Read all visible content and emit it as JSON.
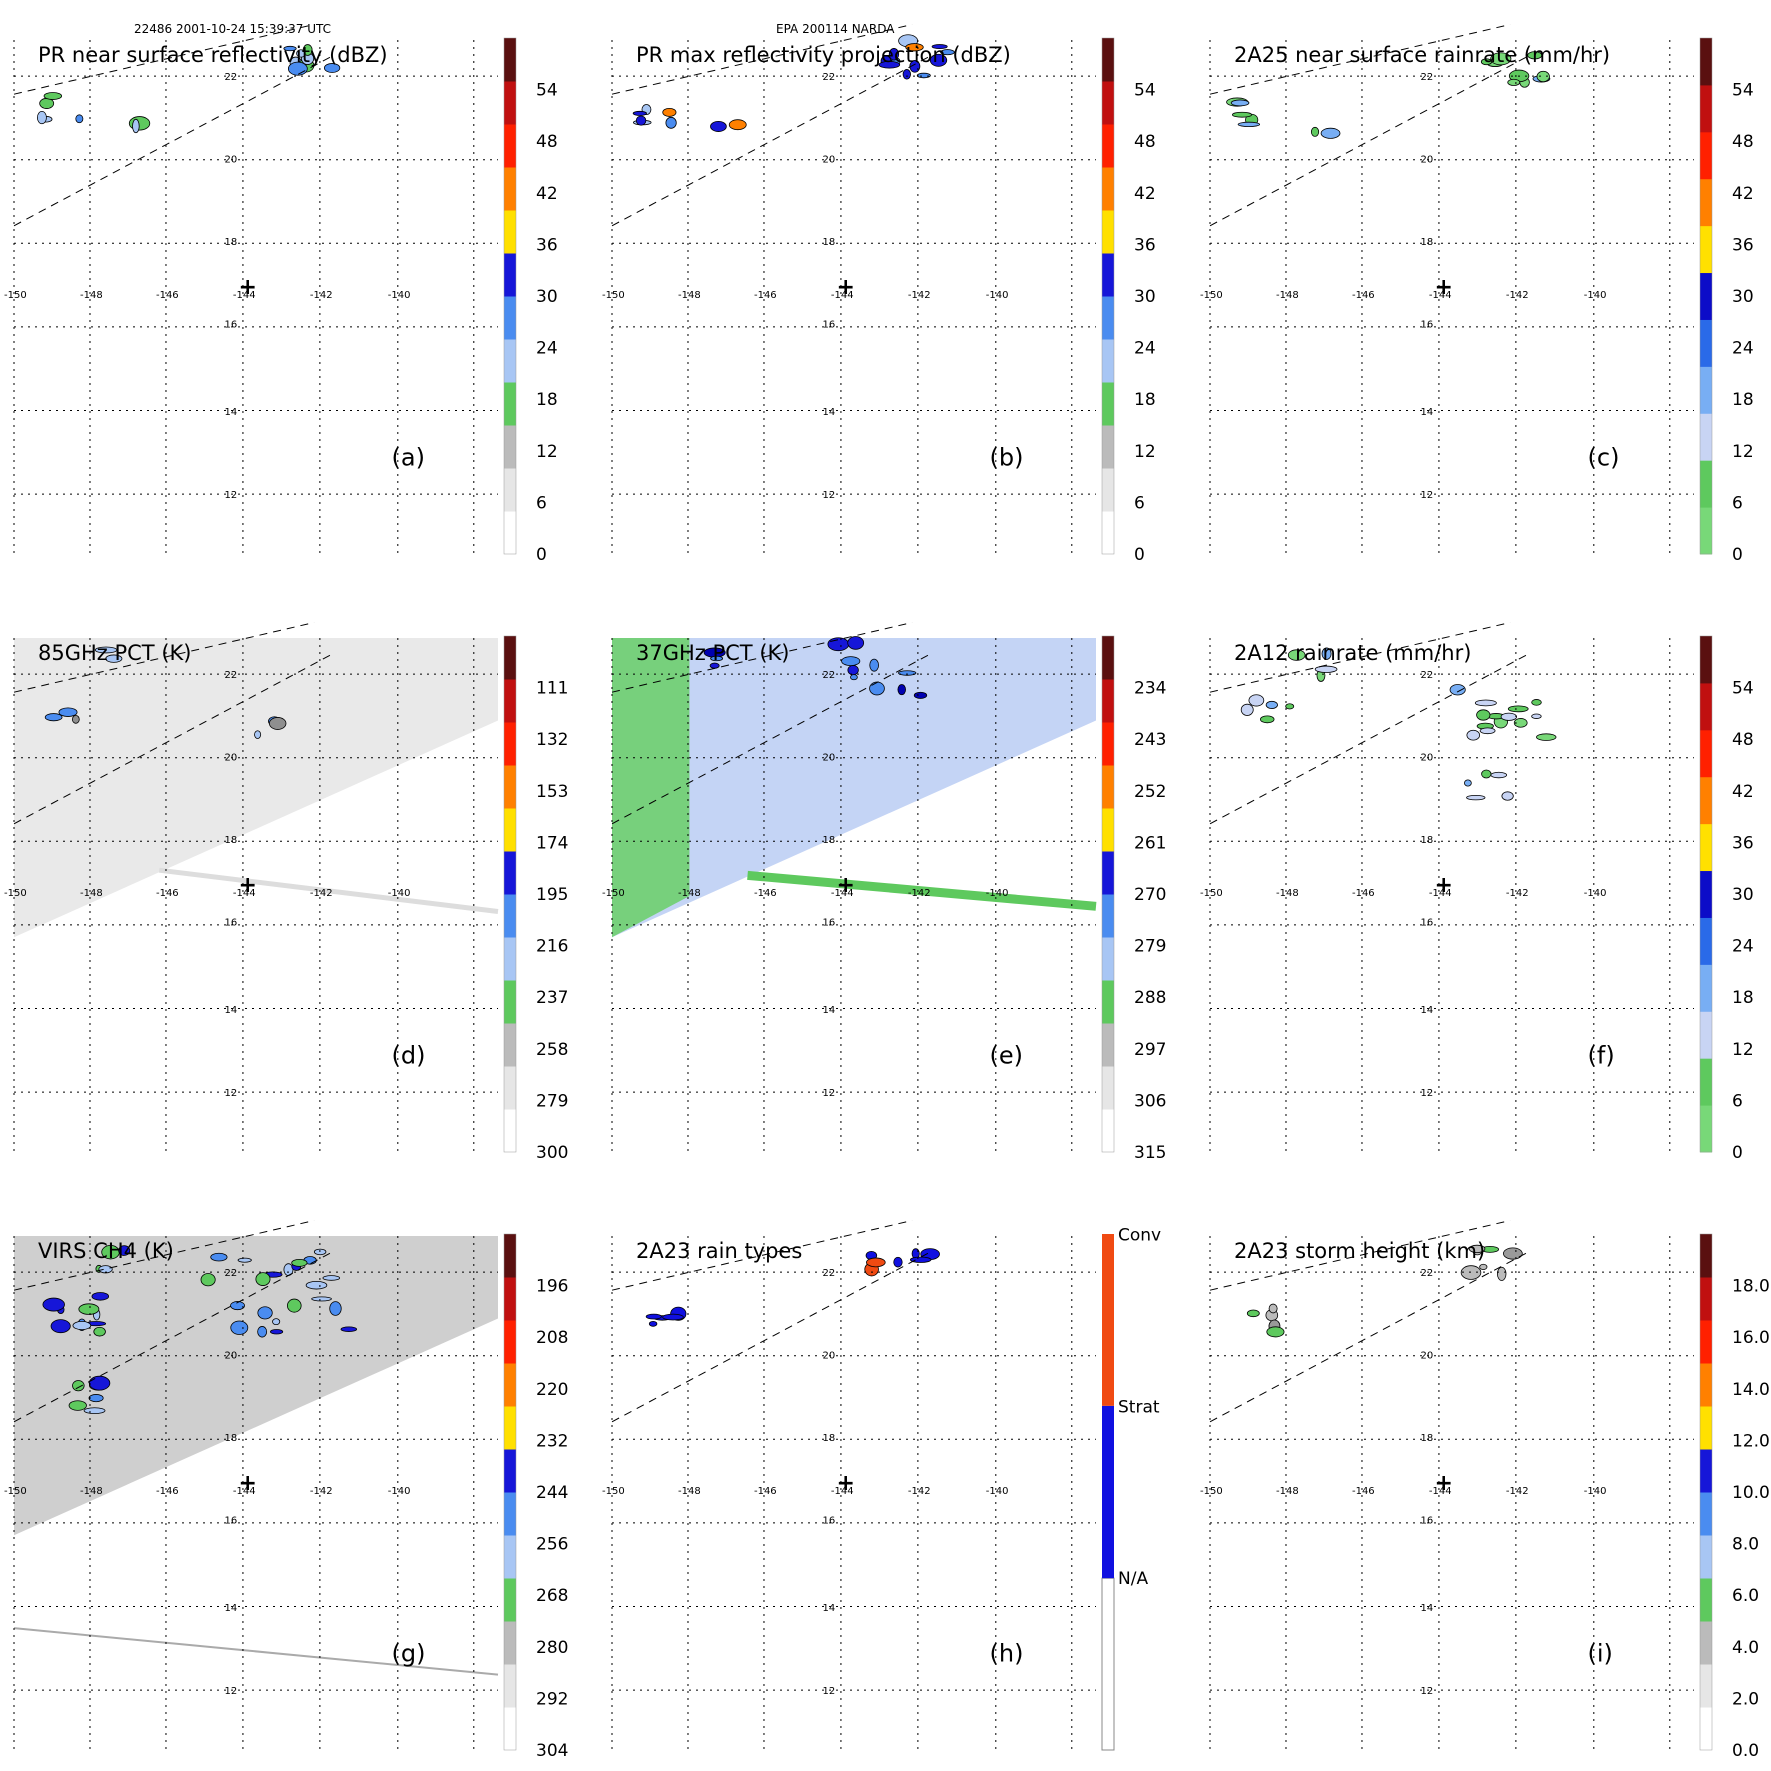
{
  "header": {
    "left": "22486 2001-10-24 15:39:37 UTC",
    "center": "EPA 200114 NARDA"
  },
  "map": {
    "lon_ticks": [
      "-150",
      "-148",
      "-146",
      "-144",
      "-142",
      "-140"
    ],
    "lat_ticks": [
      "22",
      "20",
      "18",
      "16",
      "14",
      "12"
    ],
    "center_marker": "+"
  },
  "panels": [
    {
      "title": "PR near surface reflectivity (dBZ)",
      "tag": "(a)",
      "colorbar": {
        "labels": [
          "0",
          "6",
          "12",
          "18",
          "24",
          "30",
          "36",
          "42",
          "48",
          "54"
        ]
      }
    },
    {
      "title": "PR max reflectivity projection (dBZ)",
      "tag": "(b)",
      "colorbar": {
        "labels": [
          "0",
          "6",
          "12",
          "18",
          "24",
          "30",
          "36",
          "42",
          "48",
          "54"
        ]
      }
    },
    {
      "title": "2A25 near surface rainrate (mm/hr)",
      "tag": "(c)",
      "colorbar": {
        "labels": [
          "0",
          "6",
          "12",
          "18",
          "24",
          "30",
          "36",
          "42",
          "48",
          "54"
        ]
      }
    },
    {
      "title": "85GHz PCT (K)",
      "tag": "(d)",
      "colorbar": {
        "labels": [
          "300",
          "279",
          "258",
          "237",
          "216",
          "195",
          "174",
          "153",
          "132",
          "111"
        ]
      }
    },
    {
      "title": "37GHz PCT (K)",
      "tag": "(e)",
      "colorbar": {
        "labels": [
          "315",
          "306",
          "297",
          "288",
          "279",
          "270",
          "261",
          "252",
          "243",
          "234"
        ]
      }
    },
    {
      "title": "2A12 rainrate (mm/hr)",
      "tag": "(f)",
      "colorbar": {
        "labels": [
          "0",
          "6",
          "12",
          "18",
          "24",
          "30",
          "36",
          "42",
          "48",
          "54"
        ]
      }
    },
    {
      "title": "VIRS CH4 (K)",
      "tag": "(g)",
      "colorbar": {
        "labels": [
          "304",
          "292",
          "280",
          "268",
          "256",
          "244",
          "232",
          "220",
          "208",
          "196"
        ]
      }
    },
    {
      "title": "2A23 rain types",
      "tag": "(h)",
      "colorbar": {
        "labels": [
          "N/A",
          "Strat",
          "Conv"
        ]
      }
    },
    {
      "title": "2A23 storm height (km)",
      "tag": "(i)",
      "colorbar": {
        "labels": [
          "0.0",
          "2.0",
          "4.0",
          "6.0",
          "8.0",
          "10.0",
          "12.0",
          "14.0",
          "16.0",
          "18.0"
        ]
      }
    }
  ],
  "colors": {
    "grid": "#000000",
    "swath": "#000000",
    "stratiform": "#1010e0",
    "convective": "#f04a12",
    "scale_standard": [
      "#ffffff",
      "#e6e6e6",
      "#bbbbbb",
      "#5ec95e",
      "#a8c6f4",
      "#4a8cf0",
      "#1616d8",
      "#ffe000",
      "#ff8000",
      "#ff2000",
      "#c01010",
      "#5a1010"
    ],
    "scale_rain": [
      "#78d878",
      "#5ec95e",
      "#c8d4f4",
      "#78aef4",
      "#2a6ae8",
      "#0c0cc8",
      "#ffe000",
      "#ff8000",
      "#ff2000",
      "#c01010",
      "#5a1010"
    ]
  },
  "chart_data": [
    {
      "type": "heatmap",
      "panel": "a",
      "title": "PR near surface reflectivity (dBZ)",
      "xlabel": "",
      "ylabel": "",
      "xlim": [
        -150,
        -138
      ],
      "ylim": [
        11,
        23
      ],
      "colorbar_range": [
        0,
        60
      ],
      "colorbar_ticks": [
        0,
        6,
        12,
        18,
        24,
        30,
        36,
        42,
        48,
        54
      ]
    },
    {
      "type": "heatmap",
      "panel": "b",
      "title": "PR max reflectivity projection (dBZ)",
      "xlabel": "",
      "ylabel": "",
      "xlim": [
        -150,
        -138
      ],
      "ylim": [
        11,
        23
      ],
      "colorbar_range": [
        0,
        60
      ],
      "colorbar_ticks": [
        0,
        6,
        12,
        18,
        24,
        30,
        36,
        42,
        48,
        54
      ]
    },
    {
      "type": "heatmap",
      "panel": "c",
      "title": "2A25 near surface rainrate (mm/hr)",
      "xlabel": "",
      "ylabel": "",
      "xlim": [
        -150,
        -138
      ],
      "ylim": [
        11,
        23
      ],
      "colorbar_range": [
        0,
        60
      ],
      "colorbar_ticks": [
        0,
        6,
        12,
        18,
        24,
        30,
        36,
        42,
        48,
        54
      ]
    },
    {
      "type": "heatmap",
      "panel": "d",
      "title": "85GHz PCT (K)",
      "xlabel": "",
      "ylabel": "",
      "xlim": [
        -150,
        -138
      ],
      "ylim": [
        11,
        23
      ],
      "colorbar_range": [
        300,
        90
      ],
      "colorbar_ticks": [
        300,
        279,
        258,
        237,
        216,
        195,
        174,
        153,
        132,
        111
      ]
    },
    {
      "type": "heatmap",
      "panel": "e",
      "title": "37GHz PCT (K)",
      "xlabel": "",
      "ylabel": "",
      "xlim": [
        -150,
        -138
      ],
      "ylim": [
        11,
        23
      ],
      "colorbar_range": [
        315,
        225
      ],
      "colorbar_ticks": [
        315,
        306,
        297,
        288,
        279,
        270,
        261,
        252,
        243,
        234
      ]
    },
    {
      "type": "heatmap",
      "panel": "f",
      "title": "2A12 rainrate (mm/hr)",
      "xlabel": "",
      "ylabel": "",
      "xlim": [
        -150,
        -138
      ],
      "ylim": [
        11,
        23
      ],
      "colorbar_range": [
        0,
        60
      ],
      "colorbar_ticks": [
        0,
        6,
        12,
        18,
        24,
        30,
        36,
        42,
        48,
        54
      ]
    },
    {
      "type": "heatmap",
      "panel": "g",
      "title": "VIRS CH4 (K)",
      "xlabel": "",
      "ylabel": "",
      "xlim": [
        -150,
        -138
      ],
      "ylim": [
        11,
        23
      ],
      "colorbar_range": [
        304,
        184
      ],
      "colorbar_ticks": [
        304,
        292,
        280,
        268,
        256,
        244,
        232,
        220,
        208,
        196
      ]
    },
    {
      "type": "heatmap",
      "panel": "h",
      "title": "2A23 rain types",
      "xlabel": "",
      "ylabel": "",
      "xlim": [
        -150,
        -138
      ],
      "ylim": [
        11,
        23
      ],
      "categories": [
        "N/A",
        "Strat",
        "Conv"
      ]
    },
    {
      "type": "heatmap",
      "panel": "i",
      "title": "2A23 storm height (km)",
      "xlabel": "",
      "ylabel": "",
      "xlim": [
        -150,
        -138
      ],
      "ylim": [
        11,
        23
      ],
      "colorbar_range": [
        0,
        20
      ],
      "colorbar_ticks": [
        0,
        2,
        4,
        6,
        8,
        10,
        12,
        14,
        16,
        18
      ]
    }
  ]
}
